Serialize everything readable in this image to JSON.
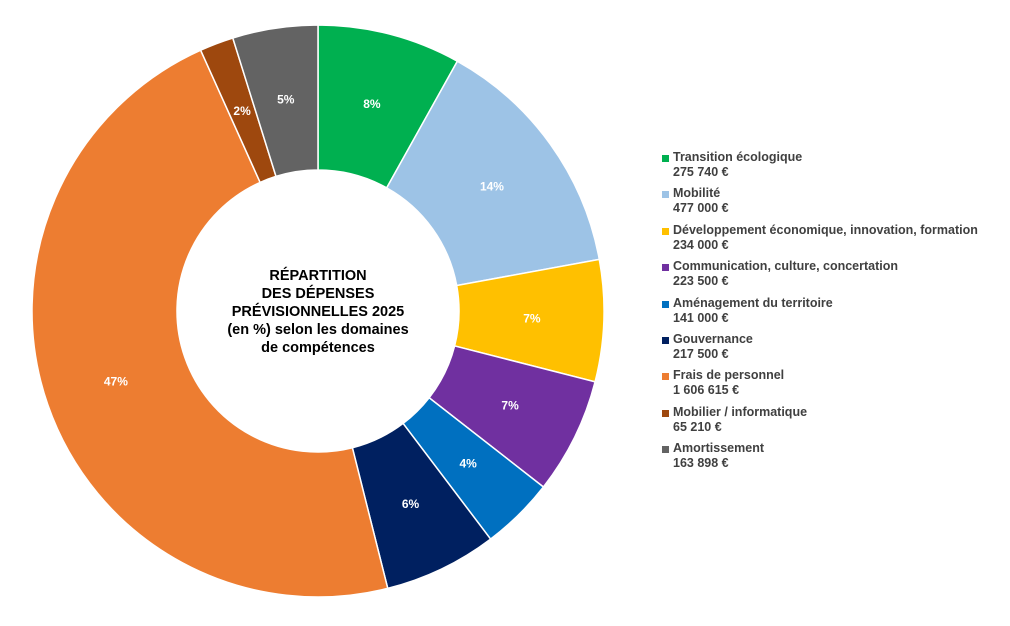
{
  "chart_data": {
    "type": "pie",
    "style": "donut",
    "title_lines": [
      "RÉPARTITION",
      "DES DÉPENSES",
      "PRÉVISIONNELLES 2025",
      "(en %) selon les domaines",
      "de compétences"
    ],
    "legend_position": "right",
    "slices": [
      {
        "name": "Transition écologique",
        "value_label": "275 740 €",
        "value": 275740,
        "percent_label": "8%",
        "color": "#00B050"
      },
      {
        "name": "Mobilité",
        "value_label": "477 000 €",
        "value": 477000,
        "percent_label": "14%",
        "color": "#9DC3E6"
      },
      {
        "name": "Développement économique, innovation, formation",
        "value_label": "234 000 €",
        "value": 234000,
        "percent_label": "7%",
        "color": "#FFC000"
      },
      {
        "name": "Communication, culture, concertation",
        "value_label": "223 500 €",
        "value": 223500,
        "percent_label": "7%",
        "color": "#7030A0"
      },
      {
        "name": "Aménagement du territoire",
        "value_label": "141 000 €",
        "value": 141000,
        "percent_label": "4%",
        "color": "#0070C0"
      },
      {
        "name": "Gouvernance",
        "value_label": "217 500 €",
        "value": 217500,
        "percent_label": "6%",
        "color": "#002060"
      },
      {
        "name": "Frais de personnel",
        "value_label": "1 606 615 €",
        "value": 1606615,
        "percent_label": "47%",
        "color": "#ED7D31"
      },
      {
        "name": "Mobilier / informatique",
        "value_label": "65 210 €",
        "value": 65210,
        "percent_label": "2%",
        "color": "#9E480E"
      },
      {
        "name": "Amortissement",
        "value_label": "163 898 €",
        "value": 163898,
        "percent_label": "5%",
        "color": "#636363"
      }
    ]
  }
}
